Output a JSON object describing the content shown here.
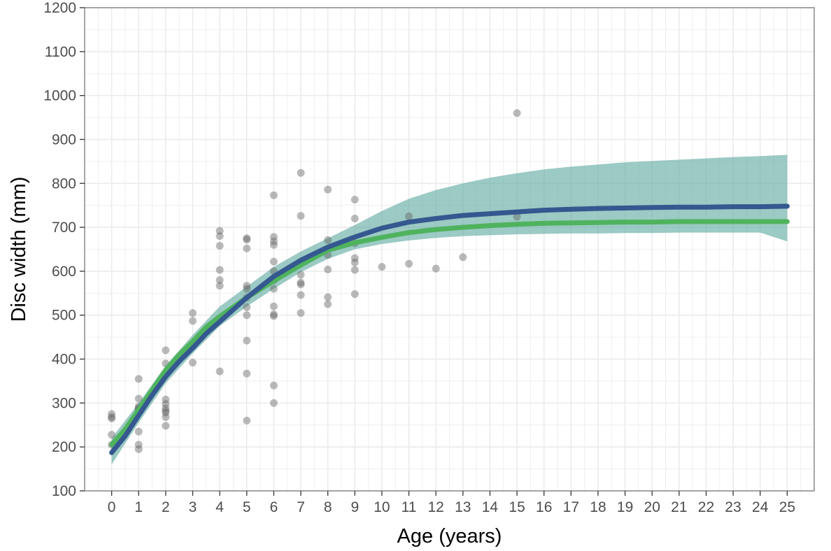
{
  "chart_data": {
    "type": "scatter",
    "title": "",
    "xlabel": "Age (years)",
    "ylabel": "Disc width (mm)",
    "xlim": [
      -1,
      26
    ],
    "ylim": [
      100,
      1200
    ],
    "x_ticks": [
      0,
      1,
      2,
      3,
      4,
      5,
      6,
      7,
      8,
      9,
      10,
      11,
      12,
      13,
      14,
      15,
      16,
      17,
      18,
      19,
      20,
      21,
      22,
      23,
      24,
      25
    ],
    "y_ticks": [
      100,
      200,
      300,
      400,
      500,
      600,
      700,
      800,
      900,
      1000,
      1100,
      1200
    ],
    "grid": true,
    "legend": "none",
    "points": [
      {
        "x": 0,
        "y": 275
      },
      {
        "x": 0,
        "y": 268
      },
      {
        "x": 0,
        "y": 265
      },
      {
        "x": 0,
        "y": 228
      },
      {
        "x": 0,
        "y": 205
      },
      {
        "x": 1,
        "y": 355
      },
      {
        "x": 1,
        "y": 310
      },
      {
        "x": 1,
        "y": 292
      },
      {
        "x": 1,
        "y": 288
      },
      {
        "x": 1,
        "y": 285
      },
      {
        "x": 1,
        "y": 235
      },
      {
        "x": 1,
        "y": 205
      },
      {
        "x": 1,
        "y": 195
      },
      {
        "x": 2,
        "y": 420
      },
      {
        "x": 2,
        "y": 390
      },
      {
        "x": 2,
        "y": 308
      },
      {
        "x": 2,
        "y": 298
      },
      {
        "x": 2,
        "y": 288
      },
      {
        "x": 2,
        "y": 282
      },
      {
        "x": 2,
        "y": 278
      },
      {
        "x": 2,
        "y": 268
      },
      {
        "x": 2,
        "y": 248
      },
      {
        "x": 3,
        "y": 505
      },
      {
        "x": 3,
        "y": 487
      },
      {
        "x": 3,
        "y": 430
      },
      {
        "x": 3,
        "y": 392
      },
      {
        "x": 4,
        "y": 692
      },
      {
        "x": 4,
        "y": 680
      },
      {
        "x": 4,
        "y": 658
      },
      {
        "x": 4,
        "y": 603
      },
      {
        "x": 4,
        "y": 580
      },
      {
        "x": 4,
        "y": 567
      },
      {
        "x": 4,
        "y": 372
      },
      {
        "x": 5,
        "y": 675
      },
      {
        "x": 5,
        "y": 672
      },
      {
        "x": 5,
        "y": 652
      },
      {
        "x": 5,
        "y": 567
      },
      {
        "x": 5,
        "y": 560
      },
      {
        "x": 5,
        "y": 540
      },
      {
        "x": 5,
        "y": 518
      },
      {
        "x": 5,
        "y": 500
      },
      {
        "x": 5,
        "y": 442
      },
      {
        "x": 5,
        "y": 367
      },
      {
        "x": 5,
        "y": 260
      },
      {
        "x": 6,
        "y": 773
      },
      {
        "x": 6,
        "y": 678
      },
      {
        "x": 6,
        "y": 668
      },
      {
        "x": 6,
        "y": 660
      },
      {
        "x": 6,
        "y": 622
      },
      {
        "x": 6,
        "y": 600
      },
      {
        "x": 6,
        "y": 580
      },
      {
        "x": 6,
        "y": 560
      },
      {
        "x": 6,
        "y": 520
      },
      {
        "x": 6,
        "y": 502
      },
      {
        "x": 6,
        "y": 498
      },
      {
        "x": 6,
        "y": 340
      },
      {
        "x": 6,
        "y": 300
      },
      {
        "x": 7,
        "y": 824
      },
      {
        "x": 7,
        "y": 726
      },
      {
        "x": 7,
        "y": 592
      },
      {
        "x": 7,
        "y": 574
      },
      {
        "x": 7,
        "y": 570
      },
      {
        "x": 7,
        "y": 546
      },
      {
        "x": 7,
        "y": 505
      },
      {
        "x": 8,
        "y": 786
      },
      {
        "x": 8,
        "y": 671
      },
      {
        "x": 8,
        "y": 637
      },
      {
        "x": 8,
        "y": 604
      },
      {
        "x": 8,
        "y": 541
      },
      {
        "x": 8,
        "y": 525
      },
      {
        "x": 9,
        "y": 763
      },
      {
        "x": 9,
        "y": 720
      },
      {
        "x": 9,
        "y": 664
      },
      {
        "x": 9,
        "y": 630
      },
      {
        "x": 9,
        "y": 620
      },
      {
        "x": 9,
        "y": 603
      },
      {
        "x": 9,
        "y": 548
      },
      {
        "x": 10,
        "y": 610
      },
      {
        "x": 11,
        "y": 725
      },
      {
        "x": 11,
        "y": 617
      },
      {
        "x": 12,
        "y": 606
      },
      {
        "x": 13,
        "y": 632
      },
      {
        "x": 15,
        "y": 960
      },
      {
        "x": 15,
        "y": 724
      }
    ],
    "series": [
      {
        "curve": "green",
        "x": [
          0,
          0.5,
          1,
          1.5,
          2,
          2.5,
          3,
          3.5,
          4,
          5,
          6,
          7,
          8,
          9,
          10,
          11,
          12,
          13,
          14,
          15,
          16,
          17,
          18,
          19,
          20,
          21,
          22,
          23,
          24,
          25
        ],
        "y": [
          205,
          240,
          285,
          330,
          375,
          410,
          440,
          473,
          497,
          540,
          578,
          614,
          648,
          665,
          677,
          688,
          695,
          700,
          704,
          707,
          709,
          710,
          711,
          712,
          712,
          713,
          713,
          713,
          713,
          713
        ]
      },
      {
        "curve": "blue",
        "x": [
          0,
          0.5,
          1,
          1.5,
          2,
          2.5,
          3,
          3.5,
          4,
          5,
          6,
          7,
          8,
          9,
          10,
          11,
          12,
          13,
          14,
          15,
          16,
          17,
          18,
          19,
          20,
          21,
          22,
          23,
          24,
          25
        ],
        "y": [
          187,
          225,
          272,
          318,
          360,
          395,
          425,
          458,
          485,
          540,
          588,
          625,
          655,
          678,
          698,
          712,
          720,
          727,
          731,
          735,
          739,
          741,
          743,
          744,
          745,
          746,
          746,
          747,
          747,
          748
        ]
      }
    ],
    "band": {
      "x": [
        0,
        1,
        2,
        3,
        4,
        5,
        6,
        7,
        8,
        9,
        10,
        11,
        12,
        13,
        14,
        15,
        16,
        17,
        18,
        19,
        20,
        21,
        22,
        23,
        24,
        25
      ],
      "lower": [
        160,
        255,
        345,
        413,
        475,
        520,
        560,
        598,
        628,
        650,
        662,
        670,
        676,
        680,
        682,
        684,
        685,
        686,
        686,
        687,
        687,
        688,
        688,
        688,
        688,
        668
      ],
      "upper": [
        220,
        300,
        385,
        455,
        520,
        565,
        610,
        645,
        675,
        705,
        737,
        765,
        785,
        800,
        813,
        823,
        832,
        838,
        843,
        848,
        851,
        854,
        857,
        860,
        862,
        865
      ]
    },
    "colors": {
      "green_curve": "#4fb35e",
      "blue_curve": "#34588f",
      "band": "#67aea5",
      "points": "#666666",
      "grid": "#ebebeb",
      "axis": "#8a8a8a"
    }
  }
}
